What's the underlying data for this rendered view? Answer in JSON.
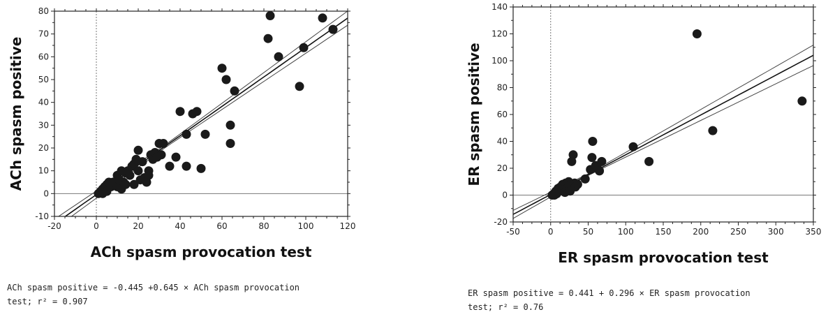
{
  "chart_data": [
    {
      "type": "scatter",
      "xlabel": "ACh spasm provocation test",
      "ylabel": "ACh spasm positive",
      "xlim": [
        -20,
        120
      ],
      "ylim": [
        -10,
        80
      ],
      "xticks": [
        -20,
        0,
        20,
        40,
        60,
        80,
        100,
        120
      ],
      "yticks": [
        -10,
        0,
        10,
        20,
        30,
        40,
        50,
        60,
        70,
        80
      ],
      "xtick_labels": [
        "-20",
        "0",
        "20",
        "40",
        "60",
        "80",
        "100",
        "120"
      ],
      "ytick_labels": [
        "-10",
        "0",
        "10",
        "20",
        "30",
        "40",
        "50",
        "60",
        "70",
        "80"
      ],
      "points": [
        [
          1,
          0
        ],
        [
          2,
          1
        ],
        [
          3,
          0
        ],
        [
          3,
          2
        ],
        [
          4,
          3
        ],
        [
          5,
          4
        ],
        [
          5,
          1
        ],
        [
          6,
          5
        ],
        [
          7,
          3
        ],
        [
          8,
          5
        ],
        [
          10,
          3
        ],
        [
          10,
          8
        ],
        [
          11,
          6
        ],
        [
          12,
          10
        ],
        [
          12,
          2
        ],
        [
          13,
          5
        ],
        [
          14,
          4
        ],
        [
          14,
          9
        ],
        [
          15,
          10
        ],
        [
          16,
          8
        ],
        [
          17,
          12
        ],
        [
          18,
          13
        ],
        [
          18,
          4
        ],
        [
          19,
          15
        ],
        [
          20,
          10
        ],
        [
          20,
          19
        ],
        [
          21,
          6
        ],
        [
          22,
          14
        ],
        [
          23,
          7
        ],
        [
          24,
          5
        ],
        [
          25,
          10
        ],
        [
          25,
          8
        ],
        [
          26,
          17
        ],
        [
          27,
          15
        ],
        [
          28,
          18
        ],
        [
          29,
          16
        ],
        [
          30,
          22
        ],
        [
          31,
          17
        ],
        [
          32,
          22
        ],
        [
          35,
          12
        ],
        [
          38,
          16
        ],
        [
          40,
          36
        ],
        [
          43,
          12
        ],
        [
          43,
          26
        ],
        [
          46,
          35
        ],
        [
          48,
          36
        ],
        [
          50,
          11
        ],
        [
          52,
          26
        ],
        [
          60,
          55
        ],
        [
          62,
          50
        ],
        [
          64,
          30
        ],
        [
          64,
          22
        ],
        [
          66,
          45
        ],
        [
          82,
          68
        ],
        [
          83,
          78
        ],
        [
          87,
          60
        ],
        [
          97,
          47
        ],
        [
          99,
          64
        ],
        [
          108,
          77
        ],
        [
          113,
          72
        ]
      ],
      "fit": {
        "intercept": -0.445,
        "slope": 0.645
      },
      "ci_band_halfwidth_at_xmax": 2.5,
      "reference_lines": {
        "x": 0,
        "y": 0
      },
      "equation_line1": "ACh spasm positive = -0.445 +0.645 × ACh spasm provocation",
      "equation_line2": "test; r² = 0.907"
    },
    {
      "type": "scatter",
      "xlabel": "ER spasm provocation test",
      "ylabel": "ER spasm positive",
      "xlim": [
        -50,
        350
      ],
      "ylim": [
        -20,
        140
      ],
      "xticks": [
        -50,
        0,
        50,
        100,
        150,
        200,
        250,
        300,
        350
      ],
      "yticks": [
        -20,
        0,
        20,
        40,
        60,
        80,
        100,
        120,
        140
      ],
      "xtick_labels": [
        "-50",
        "0",
        "50",
        "100",
        "150",
        "200",
        "250",
        "300",
        "350"
      ],
      "ytick_labels": [
        "-20",
        "0",
        "20",
        "40",
        "60",
        "80",
        "100",
        "120",
        "140"
      ],
      "points": [
        [
          2,
          0
        ],
        [
          4,
          1
        ],
        [
          5,
          0
        ],
        [
          6,
          2
        ],
        [
          7,
          3
        ],
        [
          8,
          1
        ],
        [
          10,
          5
        ],
        [
          12,
          3
        ],
        [
          13,
          6
        ],
        [
          15,
          4
        ],
        [
          16,
          8
        ],
        [
          18,
          6
        ],
        [
          19,
          2
        ],
        [
          20,
          9
        ],
        [
          22,
          5
        ],
        [
          24,
          10
        ],
        [
          25,
          7
        ],
        [
          26,
          3
        ],
        [
          28,
          25
        ],
        [
          30,
          30
        ],
        [
          32,
          9
        ],
        [
          33,
          6
        ],
        [
          36,
          8
        ],
        [
          46,
          12
        ],
        [
          53,
          19
        ],
        [
          55,
          28
        ],
        [
          56,
          40
        ],
        [
          60,
          22
        ],
        [
          62,
          20
        ],
        [
          65,
          18
        ],
        [
          68,
          25
        ],
        [
          110,
          36
        ],
        [
          131,
          25
        ],
        [
          195,
          120
        ],
        [
          216,
          48
        ],
        [
          335,
          70
        ]
      ],
      "fit": {
        "intercept": 0.441,
        "slope": 0.296
      },
      "ci_band_halfwidth_at_xmax": 7.0,
      "reference_lines": {
        "x": 0,
        "y": 0
      },
      "equation_line1": "ER spasm positive = 0.441 + 0.296 × ER spasm provocation",
      "equation_line2": "test; r² = 0.76"
    }
  ]
}
